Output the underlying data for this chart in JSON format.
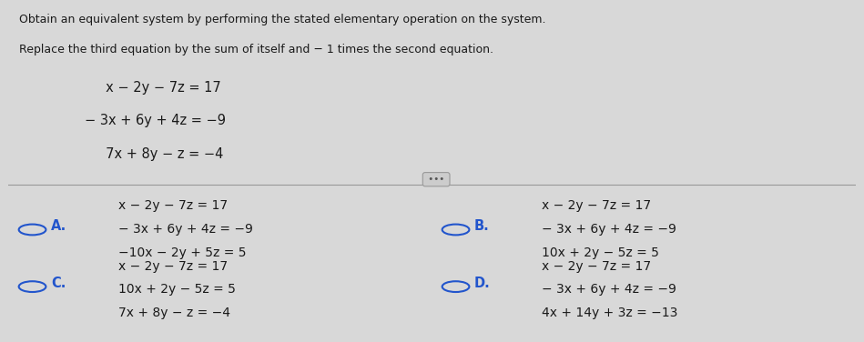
{
  "bg_color": "#d8d8d8",
  "top_bg": "#d8d8d8",
  "title_line1": "Obtain an equivalent system by performing the stated elementary operation on the system.",
  "title_line2": "Replace the third equation by the sum of itself and − 1 times the second equation.",
  "system_eq1": "     x − 2y − 7z = 17",
  "system_eq2": "− 3x + 6y + 4z = −9",
  "system_eq3": "     7x + 8y − z = −4",
  "option_A_eq1": "x − 2y − 7z = 17",
  "option_A_eq2": "− 3x + 6y + 4z = −9",
  "option_A_eq3": "−10x − 2y + 5z = 5",
  "option_B_eq1": "x − 2y − 7z = 17",
  "option_B_eq2": "− 3x + 6y + 4z = −9",
  "option_B_eq3": "10x + 2y − 5z = 5",
  "option_C_eq1": "x − 2y − 7z = 17",
  "option_C_eq2": "10x + 2y − 5z = 5",
  "option_C_eq3": "7x + 8y − z = −4",
  "option_D_eq1": "x − 2y − 7z = 17",
  "option_D_eq2": "− 3x + 6y + 4z = −9",
  "option_D_eq3": "4x + 14y + 3z = −13",
  "text_color": "#1a1a1a",
  "label_color": "#2255cc",
  "divider_color": "#999999",
  "dots_color": "#555555",
  "dots_bg": "#cccccc"
}
